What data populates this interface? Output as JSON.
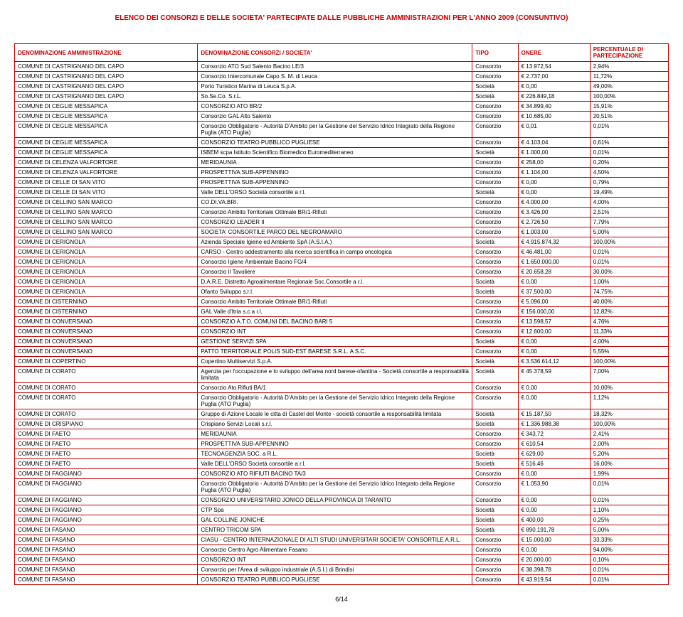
{
  "title": "ELENCO DEI CONSORZI E DELLE SOCIETA' PARTECIPATE DALLE PUBBLICHE AMMINISTRAZIONI PER L'ANNO 2009 (CONSUNTIVO)",
  "headers": {
    "admin": "DENOMINAZIONE AMMINISTRAZIONE",
    "consorzi": "DENOMINAZIONE CONSORZI / SOCIETA'",
    "tipo": "TIPO",
    "onere": "ONERE",
    "pct": "PERCENTUALE DI PARTECIPAZIONE"
  },
  "rows": [
    {
      "admin": "COMUNE DI CASTRIGNANO DEL CAPO",
      "consorzi": "Consorzio ATO Sud Salento Bacino LE/3",
      "tipo": "Consorzio",
      "onere": "€ 13.972,54",
      "pct": "2,94%"
    },
    {
      "admin": "COMUNE DI CASTRIGNANO DEL CAPO",
      "consorzi": "Consorzio Intercomunale  Capo S. M. di Leuca",
      "tipo": "Consorzio",
      "onere": "€ 2.737,00",
      "pct": "11,72%"
    },
    {
      "admin": "COMUNE DI CASTRIGNANO DEL CAPO",
      "consorzi": "Porto Turistico Marina di Leuca S.p.A.",
      "tipo": "Società",
      "onere": "€ 0,00",
      "pct": "49,00%"
    },
    {
      "admin": "COMUNE DI CASTRIGNANO DEL CAPO",
      "consorzi": "So.Se.Co. S.r.L.",
      "tipo": "Società",
      "onere": "€ 226.849,18",
      "pct": "100,00%"
    },
    {
      "admin": "COMUNE DI CEGLIE MESSAPICA",
      "consorzi": "CONSORZIO ATO BR/2",
      "tipo": "Consorzio",
      "onere": "€ 34.899,40",
      "pct": "15,91%"
    },
    {
      "admin": "COMUNE DI CEGLIE MESSAPICA",
      "consorzi": "Consorzio GAL Alto Salento",
      "tipo": "Consorzio",
      "onere": "€ 10.685,00",
      "pct": "20,51%"
    },
    {
      "admin": "COMUNE DI CEGLIE MESSAPICA",
      "consorzi": "Consorzio Obbligatorio - Autorità D'Ambito per la Gestione del Servizio Idrico Integrato della Regione Puglia (ATO Puglia)",
      "tipo": "Consorzio",
      "onere": "€ 0,01",
      "pct": "0,01%"
    },
    {
      "admin": "COMUNE DI CEGLIE MESSAPICA",
      "consorzi": "CONSORZIO TEATRO PUBBLICO PUGLIESE",
      "tipo": "Consorzio",
      "onere": "€ 4.103,04",
      "pct": "0,61%"
    },
    {
      "admin": "COMUNE DI CEGLIE MESSAPICA",
      "consorzi": "ISBEM scpa Istituto Scientifico Biomedico Euromediterraneo",
      "tipo": "Società",
      "onere": "€ 1.000,00",
      "pct": "0,01%"
    },
    {
      "admin": "COMUNE DI CELENZA VALFORTORE",
      "consorzi": "MERIDAUNIA",
      "tipo": "Consorzio",
      "onere": "€ 258,00",
      "pct": "0,20%"
    },
    {
      "admin": "COMUNE DI CELENZA VALFORTORE",
      "consorzi": "PROSPETTIVA SUB-APPENNINO",
      "tipo": "Consorzio",
      "onere": "€ 1.104,00",
      "pct": "4,50%"
    },
    {
      "admin": "COMUNE DI CELLE DI SAN VITO",
      "consorzi": "PROSPETTIVA SUB-APPENNINO",
      "tipo": "Consorzio",
      "onere": "€ 0,00",
      "pct": "0,79%"
    },
    {
      "admin": "COMUNE DI CELLE DI SAN VITO",
      "consorzi": "Valle DELL'ORSO Società consortile a r.l.",
      "tipo": "Società",
      "onere": "€ 0,00",
      "pct": "19,49%"
    },
    {
      "admin": "COMUNE DI CELLINO SAN MARCO",
      "consorzi": "CO.DI.VA.BRI.",
      "tipo": "Consorzio",
      "onere": "€ 4.000,00",
      "pct": "4,00%"
    },
    {
      "admin": "COMUNE DI CELLINO SAN MARCO",
      "consorzi": "Consorzio Ambito Territoriale Ottimale BR/1-Rifiuti",
      "tipo": "Consorzio",
      "onere": "€ 3.426,00",
      "pct": "2,51%"
    },
    {
      "admin": "COMUNE DI CELLINO SAN MARCO",
      "consorzi": "CONSORZIO LEADER II",
      "tipo": "Consorzio",
      "onere": "€ 2.726,50",
      "pct": "7,79%"
    },
    {
      "admin": "COMUNE DI CELLINO SAN MARCO",
      "consorzi": "SOCIETA' CONSORTILE PARCO DEL NEGROAMARO",
      "tipo": "Consorzio",
      "onere": "€ 1.003,00",
      "pct": "5,00%"
    },
    {
      "admin": "COMUNE DI CERIGNOLA",
      "consorzi": "Azienda Speciale Igiene ed Ambiente SpA (A.S.I.A.)",
      "tipo": "Società",
      "onere": "€ 4.915.874,32",
      "pct": "100,00%"
    },
    {
      "admin": "COMUNE DI CERIGNOLA",
      "consorzi": "CARSO - Centro addestramento alla ricerca scientifica in campo oncologica",
      "tipo": "Consorzio",
      "onere": "€ 46.481,00",
      "pct": "0,01%"
    },
    {
      "admin": "COMUNE DI CERIGNOLA",
      "consorzi": "Consorzio Igiene Ambientale Bacino FG/4",
      "tipo": "Consorzio",
      "onere": "€ 1.650.000,00",
      "pct": "0,01%"
    },
    {
      "admin": "COMUNE DI CERIGNOLA",
      "consorzi": "Consorzio Il Tavoliere",
      "tipo": "Consorzio",
      "onere": "€ 20.658,28",
      "pct": "30,00%"
    },
    {
      "admin": "COMUNE DI CERIGNOLA",
      "consorzi": "D.A.R.E. Distretto Agroalimentare Regionale Soc.Consortile a r.l.",
      "tipo": "Società",
      "onere": "€ 0,00",
      "pct": "1,00%"
    },
    {
      "admin": "COMUNE DI CERIGNOLA",
      "consorzi": "Ofanto Sviluppo s.r.l.",
      "tipo": "Società",
      "onere": "€ 37.500,00",
      "pct": "74,75%"
    },
    {
      "admin": "COMUNE DI CISTERNINO",
      "consorzi": "Consorzio Ambito Territoriale Ottimale BR/1-Rifiuti",
      "tipo": "Consorzio",
      "onere": "€ 5.096,00",
      "pct": "40,00%"
    },
    {
      "admin": "COMUNE DI CISTERNINO",
      "consorzi": "GAL Valle d'Itria s.c.a r.l.",
      "tipo": "Consorzio",
      "onere": "€ 156.000,00",
      "pct": "12,82%"
    },
    {
      "admin": "COMUNE DI CONVERSANO",
      "consorzi": "CONSORZIO A.T.O. COMUNI DEL BACINO BARI 5",
      "tipo": "Consorzio",
      "onere": "€ 13.598,57",
      "pct": "4,76%"
    },
    {
      "admin": "COMUNE DI CONVERSANO",
      "consorzi": "CONSORZIO INT",
      "tipo": "Consorzio",
      "onere": "€ 12.600,00",
      "pct": "11,33%"
    },
    {
      "admin": "COMUNE DI CONVERSANO",
      "consorzi": "GESTIONE SERVIZI SPA",
      "tipo": "Società",
      "onere": "€ 0,00",
      "pct": "4,00%"
    },
    {
      "admin": "COMUNE DI CONVERSANO",
      "consorzi": "PATTO TERRITORIALE POLIS SUD-EST BARESE S.R.L. A S.C.",
      "tipo": "Consorzio",
      "onere": "€ 0,00",
      "pct": "5,55%"
    },
    {
      "admin": "COMUNE DI COPERTINO",
      "consorzi": "Copertino Multiservizi S.p.A.",
      "tipo": "Società",
      "onere": "€ 3.536.614,12",
      "pct": "100,00%"
    },
    {
      "admin": "COMUNE DI CORATO",
      "consorzi": "Agenzia per l'occupazione e lo sviluppo dell'area nord barese-ofantina - Società consortile a responsabilità limitata",
      "tipo": "Società",
      "onere": "€ 45.378,59",
      "pct": "7,00%"
    },
    {
      "admin": "COMUNE DI CORATO",
      "consorzi": "Consorzio Ato Rifiuti BA/1",
      "tipo": "Consorzio",
      "onere": "€ 0,00",
      "pct": "10,00%"
    },
    {
      "admin": "COMUNE DI CORATO",
      "consorzi": "Consorzio Obbligatorio - Autorità D'Ambito per la Gestione del Servizio Idrico Integrato della Regione Puglia (ATO Puglia)",
      "tipo": "Consorzio",
      "onere": "€ 0,00",
      "pct": "1,12%"
    },
    {
      "admin": "COMUNE DI CORATO",
      "consorzi": "Gruppo di Azione Locale le citta di Castel del Monte - società consortile a responsabilità limitata",
      "tipo": "Società",
      "onere": "€ 15.187,50",
      "pct": "18,32%"
    },
    {
      "admin": "COMUNE DI CRISPIANO",
      "consorzi": "Crispiano Servizi Locali s.r.l.",
      "tipo": "Società",
      "onere": "€ 1.336.988,38",
      "pct": "100,00%"
    },
    {
      "admin": "COMUNE DI FAETO",
      "consorzi": "MERIDAUNIA",
      "tipo": "Consorzio",
      "onere": "€ 343,72",
      "pct": "2,41%"
    },
    {
      "admin": "COMUNE DI FAETO",
      "consorzi": "PROSPETTIVA SUB-APPENNINO",
      "tipo": "Consorzio",
      "onere": "€ 610,54",
      "pct": "2,00%"
    },
    {
      "admin": "COMUNE DI FAETO",
      "consorzi": "TECNOAGENZIA SOC. a R.L.",
      "tipo": "Società",
      "onere": "€ 629,00",
      "pct": "5,20%"
    },
    {
      "admin": "COMUNE DI FAETO",
      "consorzi": "Valle DELL'ORSO Società consortile a r.l.",
      "tipo": "Società",
      "onere": "€ 516,46",
      "pct": "16,00%"
    },
    {
      "admin": "COMUNE DI FAGGIANO",
      "consorzi": "CONSORZIO ATO RIFIUTI BACINO TA/3",
      "tipo": "Consorzio",
      "onere": "€ 0,00",
      "pct": "1,99%"
    },
    {
      "admin": "COMUNE DI FAGGIANO",
      "consorzi": "Consorzio Obbligatorio - Autorità D'Ambito per la Gestione del Servizio Idrico Integrato della Regione Puglia (ATO Puglia)",
      "tipo": "Consorzio",
      "onere": "€ 1.053,90",
      "pct": "0,01%"
    },
    {
      "admin": "COMUNE DI FAGGIANO",
      "consorzi": "CONSORZIO UNIVERSITARIO JONICO DELLA PROVINCIA DI TARANTO",
      "tipo": "Consorzio",
      "onere": "€ 0,00",
      "pct": "0,01%"
    },
    {
      "admin": "COMUNE DI FAGGIANO",
      "consorzi": "CTP Spa",
      "tipo": "Società",
      "onere": "€ 0,00",
      "pct": "1,10%"
    },
    {
      "admin": "COMUNE DI FAGGIANO",
      "consorzi": "GAL COLLINE JONICHE",
      "tipo": "Società",
      "onere": "€ 400,00",
      "pct": "0,25%"
    },
    {
      "admin": "COMUNE DI FASANO",
      "consorzi": "CENTRO TRICOM SPA",
      "tipo": "Società",
      "onere": "€ 890.191,78",
      "pct": "5,00%"
    },
    {
      "admin": "COMUNE DI FASANO",
      "consorzi": "CIASU - CENTRO INTERNAZIONALE DI ALTI STUDI UNIVERSITARI  SOCIETA' CONSORTILE A.R.L.",
      "tipo": "Consorzio",
      "onere": "€ 15.000,00",
      "pct": "33,33%"
    },
    {
      "admin": "COMUNE DI FASANO",
      "consorzi": "Consorzio Centro Agro Alimentare Fasano",
      "tipo": "Consorzio",
      "onere": "€ 0,00",
      "pct": "94,00%"
    },
    {
      "admin": "COMUNE DI FASANO",
      "consorzi": "CONSORZIO INT",
      "tipo": "Consorzio",
      "onere": "€ 20.000,00",
      "pct": "0,10%"
    },
    {
      "admin": "COMUNE DI FASANO",
      "consorzi": "Consorzio per l'Area di sviluppo industriale (A.S.I.) di Brindisi",
      "tipo": "Consorzio",
      "onere": "€ 38.398,78",
      "pct": "0,01%"
    },
    {
      "admin": "COMUNE DI FASANO",
      "consorzi": "CONSORZIO TEATRO PUBBLICO PUGLIESE",
      "tipo": "Consorzio",
      "onere": "€ 43.919,54",
      "pct": "0,01%"
    }
  ],
  "pageNum": "6/14"
}
